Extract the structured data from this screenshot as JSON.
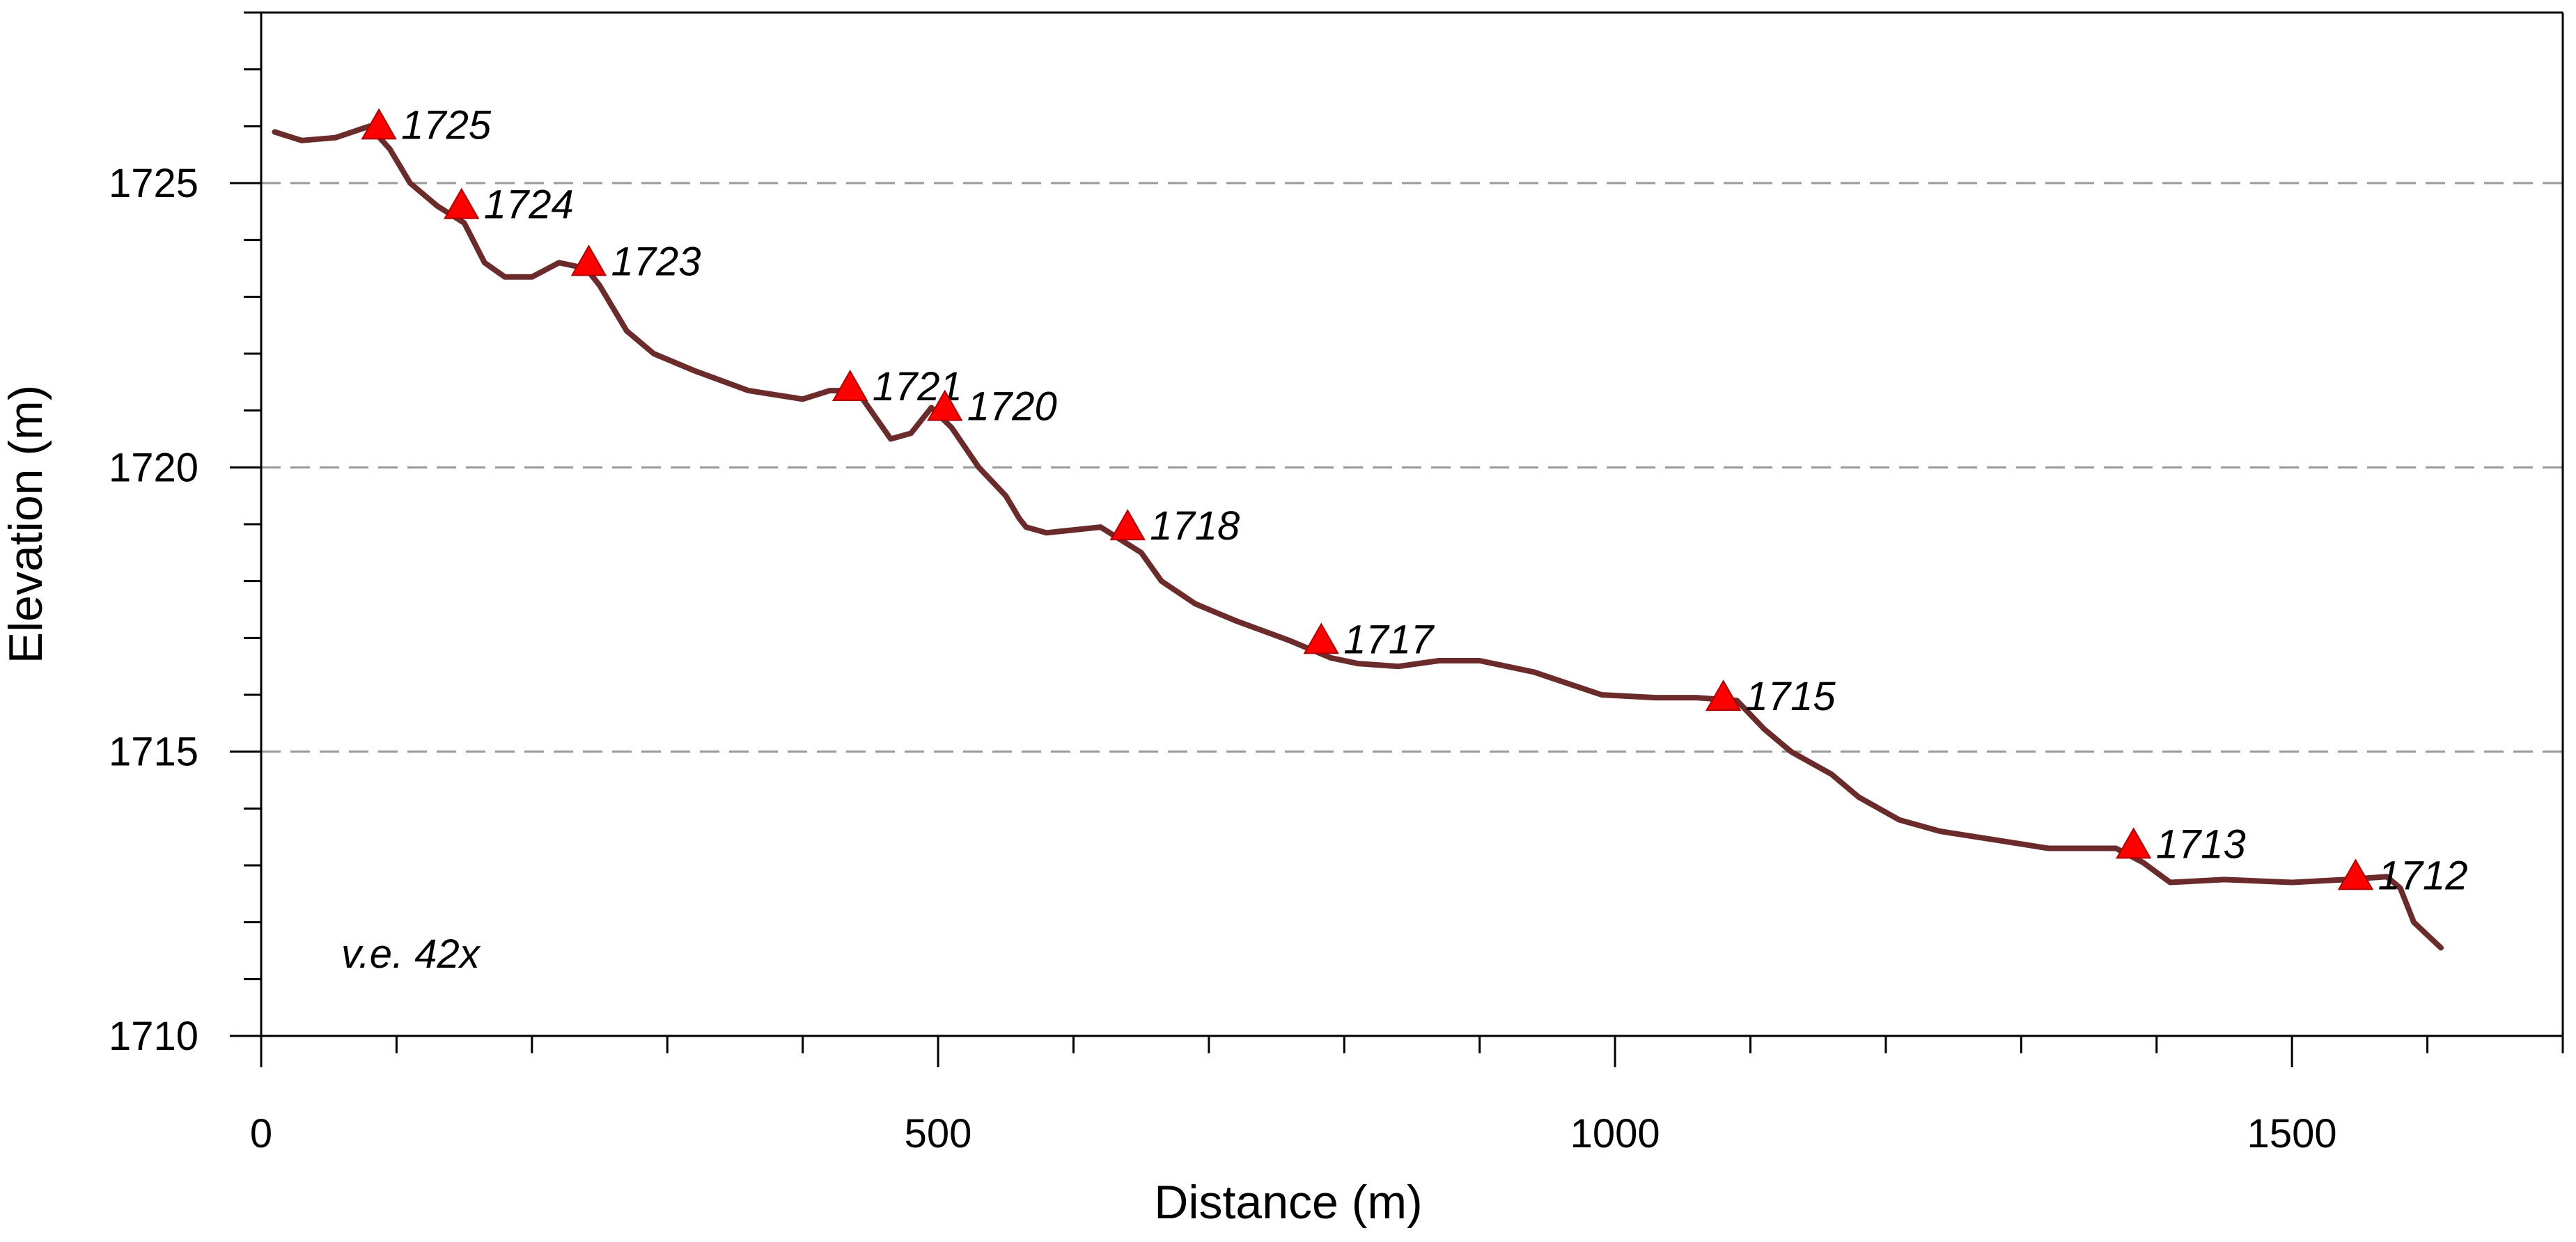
{
  "chart_data": {
    "type": "line",
    "xlabel": "Distance (m)",
    "ylabel": "Elevation (m)",
    "xlim": [
      0,
      1700
    ],
    "ylim": [
      1710,
      1728
    ],
    "x_ticks": [
      0,
      500,
      1000,
      1500
    ],
    "y_ticks": [
      1710,
      1715,
      1720,
      1725
    ],
    "x_minor_step": 100,
    "y_minor_step": 1,
    "grid": "dashed horizontal at major y ticks",
    "annotation": "v.e. 42x",
    "line_color": "#6b2b2b",
    "marker_color": "#ff0000",
    "profile": {
      "x": [
        10,
        30,
        55,
        80,
        95,
        110,
        130,
        150,
        165,
        180,
        200,
        220,
        240,
        250,
        270,
        290,
        320,
        360,
        400,
        420,
        440,
        465,
        480,
        495,
        510,
        530,
        550,
        560,
        565,
        580,
        620,
        650,
        665,
        690,
        720,
        760,
        790,
        810,
        840,
        870,
        900,
        940,
        990,
        1030,
        1060,
        1090,
        1110,
        1130,
        1160,
        1180,
        1210,
        1240,
        1280,
        1320,
        1350,
        1370,
        1390,
        1410,
        1450,
        1500,
        1540,
        1570,
        1580,
        1590,
        1610
      ],
      "y": [
        1725.9,
        1725.75,
        1725.8,
        1726.0,
        1725.6,
        1725.0,
        1724.6,
        1724.3,
        1723.6,
        1723.35,
        1723.35,
        1723.6,
        1723.5,
        1723.2,
        1722.4,
        1722.0,
        1721.7,
        1721.35,
        1721.2,
        1721.35,
        1721.35,
        1720.5,
        1720.6,
        1721.05,
        1720.7,
        1720.0,
        1719.5,
        1719.1,
        1718.95,
        1718.85,
        1718.95,
        1718.5,
        1718.0,
        1717.6,
        1717.3,
        1716.95,
        1716.65,
        1716.55,
        1716.5,
        1716.6,
        1716.6,
        1716.4,
        1716.0,
        1715.95,
        1715.95,
        1715.9,
        1715.4,
        1715.0,
        1714.6,
        1714.2,
        1713.8,
        1713.6,
        1713.45,
        1713.3,
        1713.3,
        1713.3,
        1713.05,
        1712.7,
        1712.75,
        1712.7,
        1712.75,
        1712.8,
        1712.6,
        1712.0,
        1711.55
      ]
    },
    "markers": [
      {
        "x": 87,
        "y": 1726.0,
        "label": "1725"
      },
      {
        "x": 148,
        "y": 1724.6,
        "label": "1724"
      },
      {
        "x": 242,
        "y": 1723.6,
        "label": "1723"
      },
      {
        "x": 435,
        "y": 1721.4,
        "label": "1721"
      },
      {
        "x": 505,
        "y": 1721.05,
        "label": "1720"
      },
      {
        "x": 640,
        "y": 1718.95,
        "label": "1718"
      },
      {
        "x": 783,
        "y": 1716.95,
        "label": "1717"
      },
      {
        "x": 1080,
        "y": 1715.95,
        "label": "1715"
      },
      {
        "x": 1383,
        "y": 1713.35,
        "label": "1713"
      },
      {
        "x": 1547,
        "y": 1712.8,
        "label": "1712"
      }
    ]
  }
}
